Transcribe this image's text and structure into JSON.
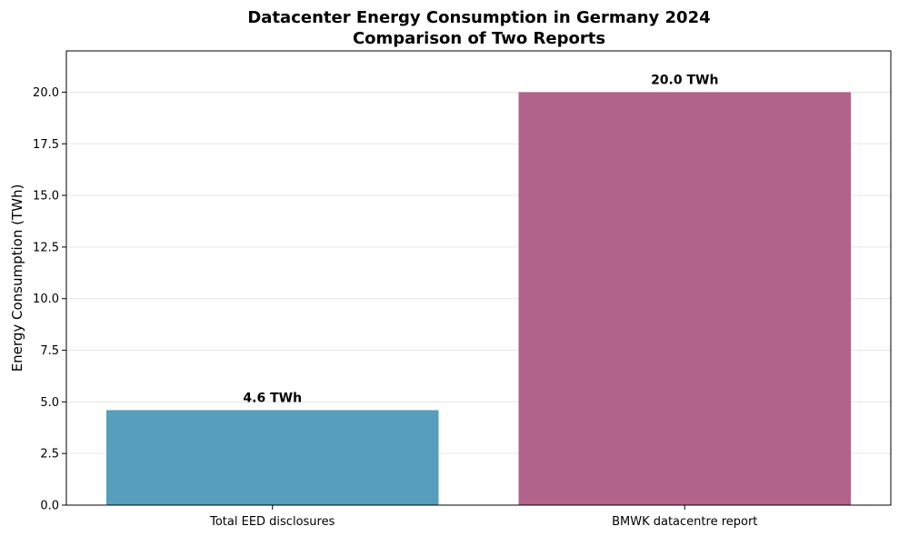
{
  "chart_data": {
    "type": "bar",
    "title": "Datacenter Energy Consumption in Germany 2024",
    "subtitle": "Comparison of Two Reports",
    "xlabel": "",
    "ylabel": "Energy Consumption (TWh)",
    "categories": [
      "Total EED disclosures",
      "BMWK datacentre report"
    ],
    "values": [
      4.6,
      20.0
    ],
    "data_labels": [
      "4.6 TWh",
      "20.0 TWh"
    ],
    "colors": [
      "#579DBC",
      "#B2638C"
    ],
    "ylim": [
      0,
      22
    ],
    "yticks": [
      0,
      2.5,
      5,
      7.5,
      10,
      12.5,
      15,
      17.5,
      20
    ],
    "ytick_labels": [
      "0.0",
      "2.5",
      "5.0",
      "7.5",
      "10.0",
      "12.5",
      "15.0",
      "17.5",
      "20.0"
    ],
    "grid": "y"
  }
}
